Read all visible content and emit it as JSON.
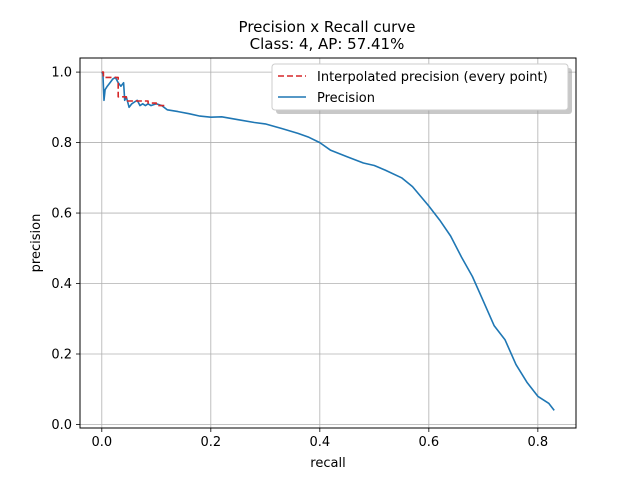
{
  "chart_data": {
    "type": "line",
    "title": "Precision x Recall curve",
    "subtitle": "Class: 4, AP: 57.41%",
    "xlabel": "recall",
    "ylabel": "precision",
    "xlim": [
      -0.04,
      0.87
    ],
    "ylim": [
      -0.01,
      1.04
    ],
    "xticks": [
      0.0,
      0.2,
      0.4,
      0.6,
      0.8
    ],
    "xtick_labels": [
      "0.0",
      "0.2",
      "0.4",
      "0.6",
      "0.8"
    ],
    "yticks": [
      0.0,
      0.2,
      0.4,
      0.6,
      0.8,
      1.0
    ],
    "ytick_labels": [
      "0.0",
      "0.2",
      "0.4",
      "0.6",
      "0.8",
      "1.0"
    ],
    "grid": true,
    "legend_position": "top-right",
    "series": [
      {
        "name": "Interpolated precision (every point)",
        "color": "#d62728",
        "style": "dashed",
        "x": [
          0.0,
          0.003,
          0.003,
          0.03,
          0.03,
          0.045,
          0.045,
          0.085,
          0.085,
          0.1,
          0.1,
          0.12
        ],
        "y": [
          1.0,
          1.0,
          0.985,
          0.985,
          0.93,
          0.93,
          0.918,
          0.918,
          0.912,
          0.912,
          0.905,
          0.905
        ]
      },
      {
        "name": "Precision",
        "color": "#1f77b4",
        "style": "solid",
        "x": [
          0.0,
          0.002,
          0.004,
          0.006,
          0.01,
          0.015,
          0.02,
          0.025,
          0.03,
          0.035,
          0.04,
          0.042,
          0.045,
          0.05,
          0.055,
          0.06,
          0.065,
          0.07,
          0.075,
          0.08,
          0.085,
          0.09,
          0.1,
          0.11,
          0.12,
          0.14,
          0.16,
          0.18,
          0.2,
          0.22,
          0.25,
          0.28,
          0.3,
          0.33,
          0.36,
          0.38,
          0.4,
          0.42,
          0.45,
          0.48,
          0.5,
          0.52,
          0.55,
          0.57,
          0.6,
          0.62,
          0.64,
          0.66,
          0.68,
          0.7,
          0.72,
          0.74,
          0.76,
          0.78,
          0.8,
          0.82,
          0.83
        ],
        "y": [
          1.0,
          0.995,
          0.92,
          0.95,
          0.96,
          0.97,
          0.98,
          0.985,
          0.97,
          0.96,
          0.97,
          0.92,
          0.93,
          0.9,
          0.91,
          0.915,
          0.92,
          0.905,
          0.91,
          0.905,
          0.91,
          0.905,
          0.91,
          0.905,
          0.893,
          0.888,
          0.882,
          0.875,
          0.872,
          0.873,
          0.865,
          0.857,
          0.853,
          0.84,
          0.826,
          0.815,
          0.8,
          0.778,
          0.76,
          0.742,
          0.735,
          0.722,
          0.7,
          0.675,
          0.62,
          0.58,
          0.535,
          0.475,
          0.42,
          0.35,
          0.28,
          0.24,
          0.17,
          0.12,
          0.08,
          0.06,
          0.04
        ]
      }
    ]
  }
}
